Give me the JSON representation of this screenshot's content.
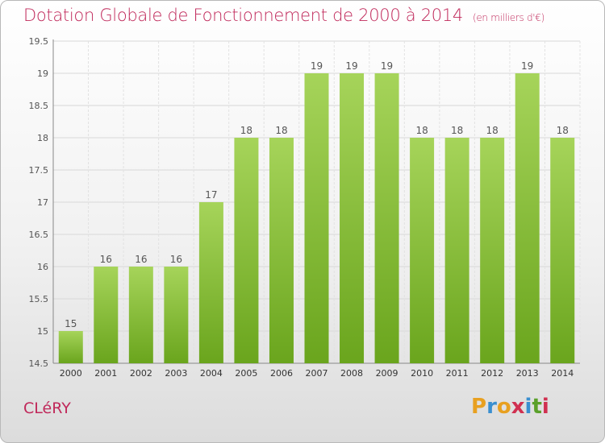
{
  "title": "Dotation Globale de Fonctionnement de 2000 à 2014",
  "subtitle": "(en milliers d'€)",
  "commune": "CLéRY",
  "logo": {
    "text": "Proxiti",
    "letters": [
      "P",
      "r",
      "o",
      "x",
      "i",
      "t",
      "i"
    ],
    "colors": [
      "#e8a020",
      "#3a8fd0",
      "#e8a020",
      "#d03050",
      "#3a8fd0",
      "#5aa02a",
      "#d03050"
    ]
  },
  "colors": {
    "title": "#c0285a",
    "bar_top": "#a6d45a",
    "bar_bottom": "#6aa51d",
    "label": "#555555"
  },
  "chart_data": {
    "type": "bar",
    "categories": [
      "2000",
      "2001",
      "2002",
      "2003",
      "2004",
      "2005",
      "2006",
      "2007",
      "2008",
      "2009",
      "2010",
      "2011",
      "2012",
      "2013",
      "2014"
    ],
    "values": [
      15,
      16,
      16,
      16,
      17,
      18,
      18,
      19,
      19,
      19,
      18,
      18,
      18,
      19,
      18
    ],
    "value_labels": [
      "15",
      "16",
      "16",
      "16",
      "17",
      "18",
      "18",
      "19",
      "19",
      "19",
      "18",
      "18",
      "18",
      "19",
      "18"
    ],
    "y_ticks": [
      14.5,
      15,
      15.5,
      16,
      16.5,
      17,
      17.5,
      18,
      18.5,
      19,
      19.5
    ],
    "y_tick_labels": [
      "14.5",
      "15",
      "15.5",
      "16",
      "16.5",
      "17",
      "17.5",
      "18",
      "18.5",
      "19",
      "19.5"
    ],
    "ylim": [
      14.5,
      19.5
    ],
    "grid": true,
    "title": "Dotation Globale de Fonctionnement de 2000 à 2014",
    "xlabel": "",
    "ylabel": ""
  }
}
